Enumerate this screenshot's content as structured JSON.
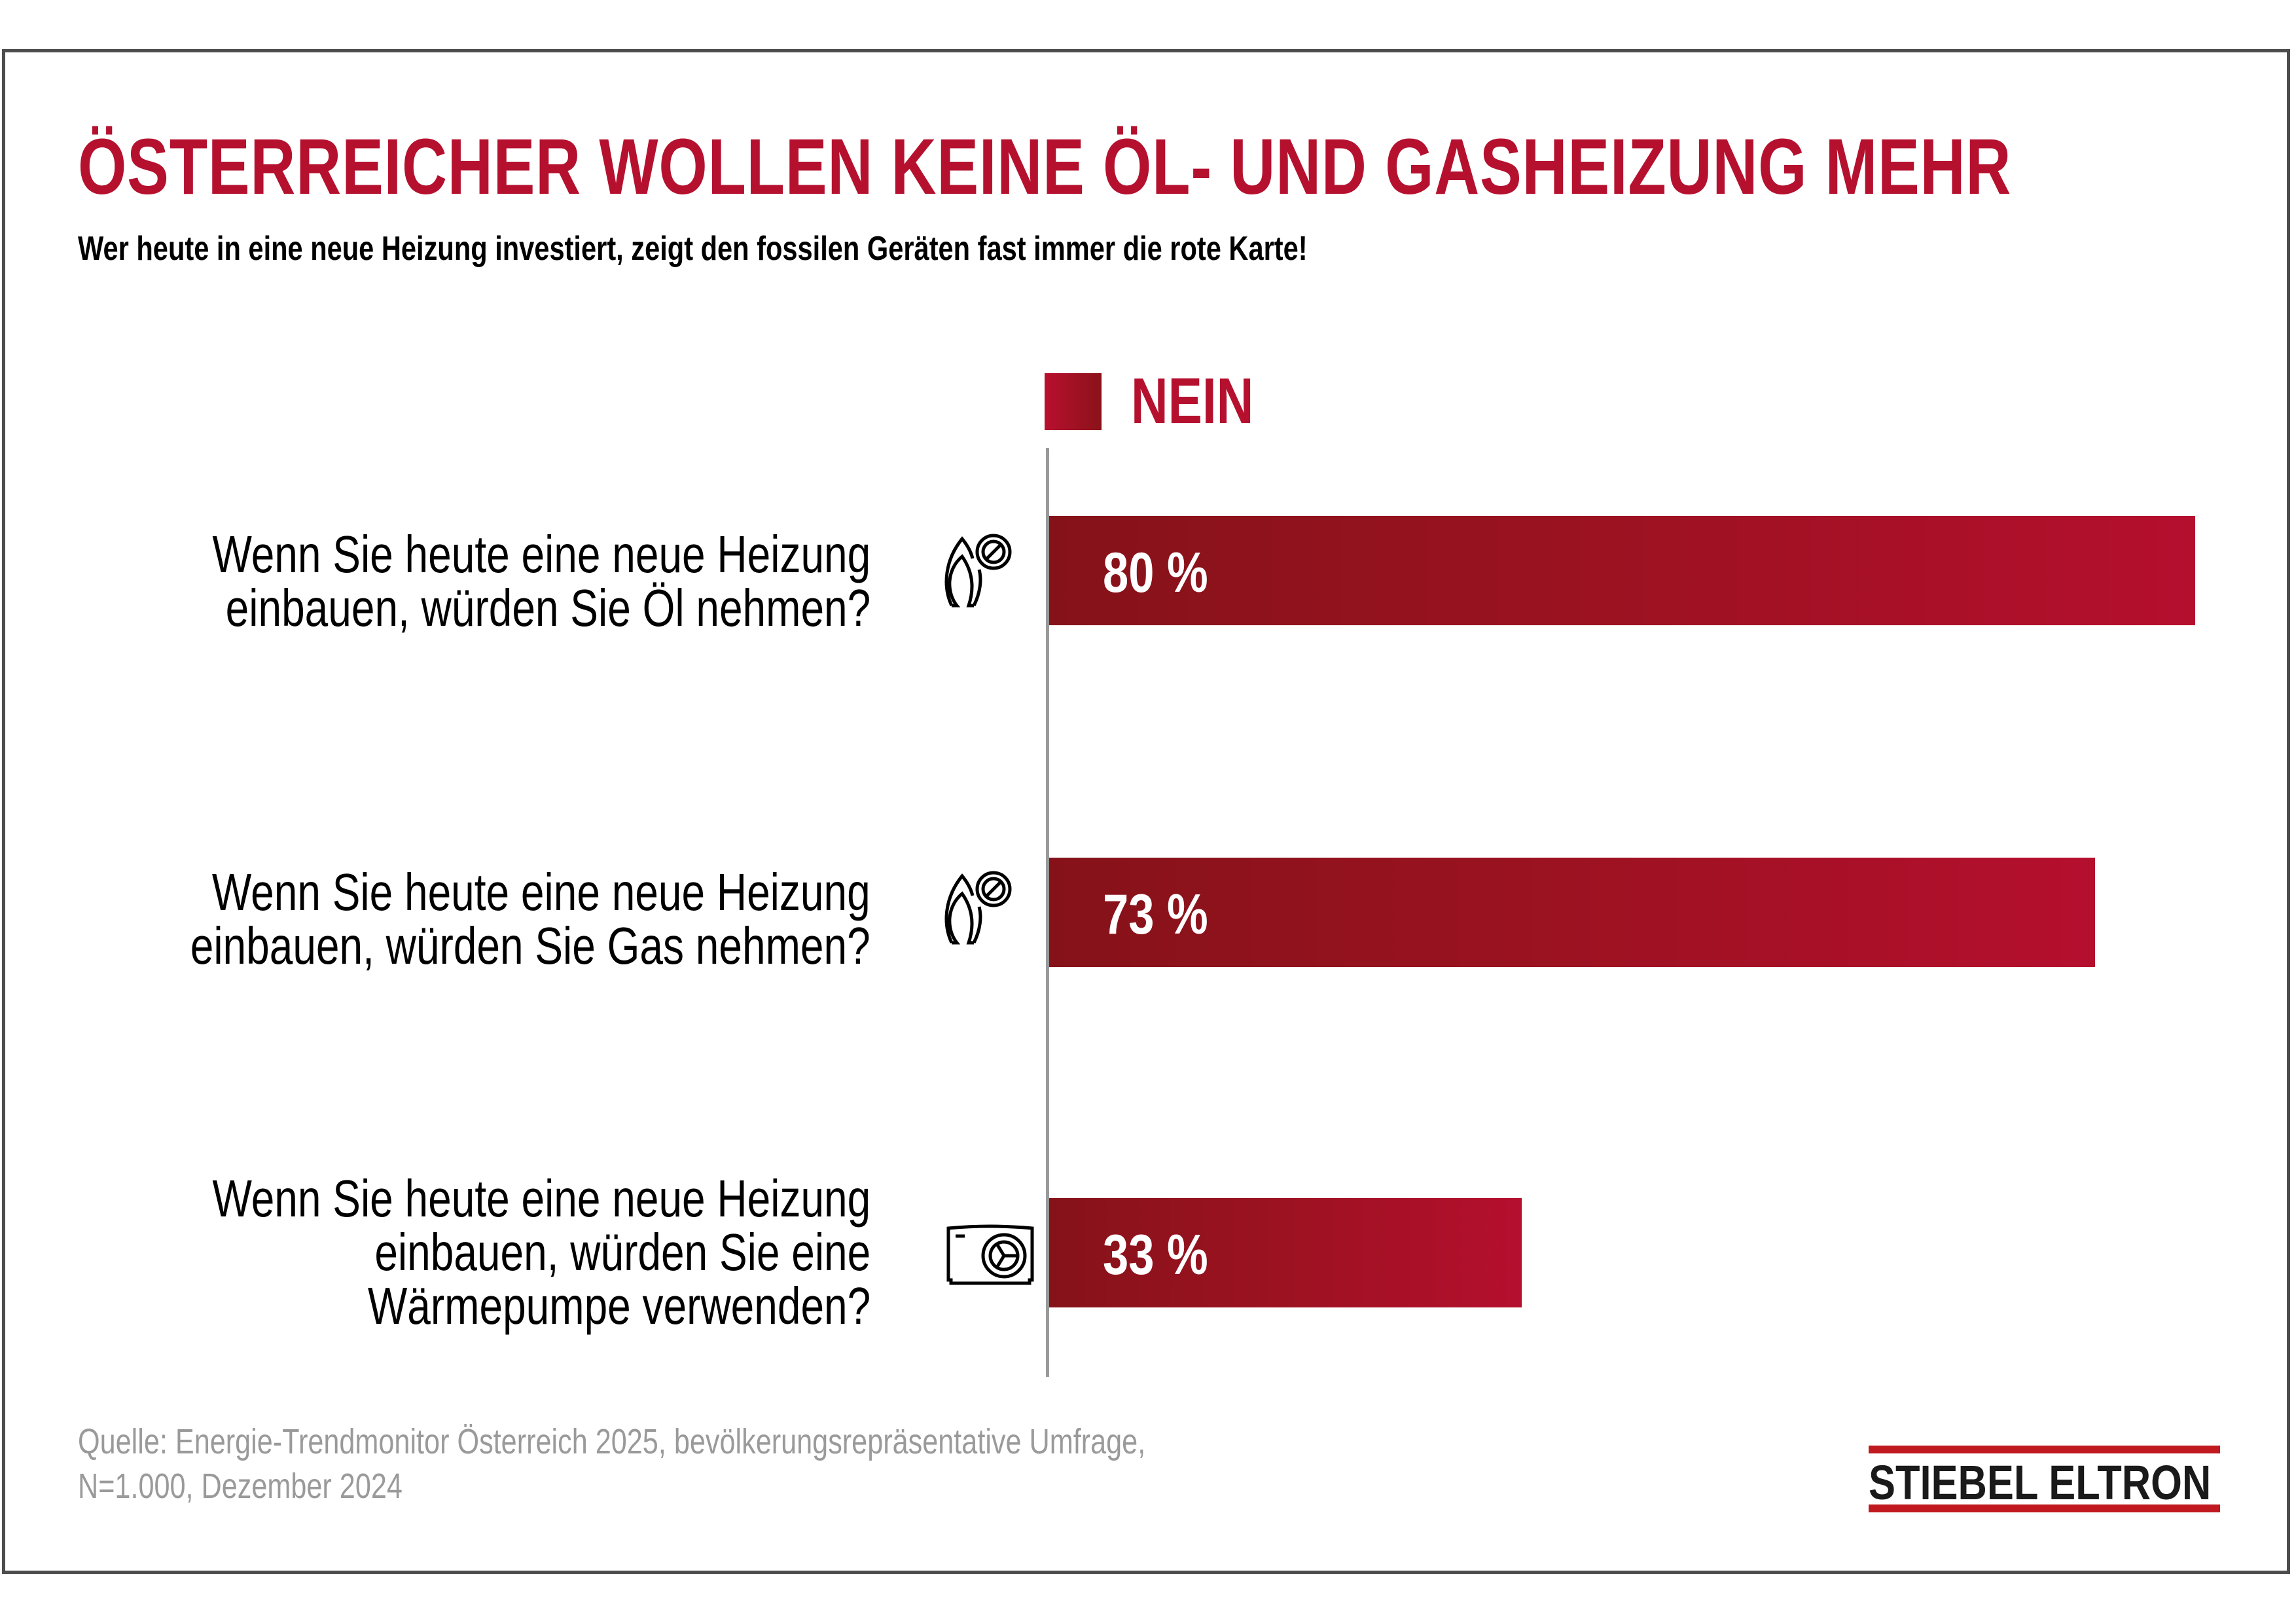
{
  "header": {
    "title": "ÖSTERREICHER WOLLEN KEINE ÖL- UND GASHEIZUNG MEHR",
    "subtitle": "Wer heute in eine neue Heizung investiert, zeigt den fossilen Geräten fast immer die rote Karte!"
  },
  "colors": {
    "accent": "#b5112f",
    "bar_dark": "#861219",
    "bar_light": "#b50f2e",
    "axis": "#999999",
    "source_text": "#9a9a9a",
    "logo_red": "#c01920"
  },
  "chart_data": {
    "type": "bar",
    "orientation": "horizontal",
    "title": "ÖSTERREICHER WOLLEN KEINE ÖL- UND GASHEIZUNG MEHR",
    "subtitle": "Wer heute in eine neue Heizung investiert, zeigt den fossilen Geräten fast immer die rote Karte!",
    "legend": {
      "entries": [
        "NEIN"
      ],
      "position": "top"
    },
    "xlim": [
      0,
      100
    ],
    "unit": "%",
    "grid": false,
    "categories": [
      "Wenn Sie heute eine neue Heizung einbauen, würden Sie Öl nehmen?",
      "Wenn Sie heute eine neue Heizung einbauen, würden Sie Gas nehmen?",
      "Wenn Sie heute eine neue Heizung einbauen, würden Sie eine Wärmepumpe verwenden?"
    ],
    "series": [
      {
        "name": "NEIN",
        "values": [
          80,
          73,
          33
        ]
      }
    ],
    "data_labels": [
      "80 %",
      "73 %",
      "33 %"
    ],
    "category_lines": [
      [
        "Wenn Sie heute eine neue Heizung",
        "einbauen, würden Sie Öl nehmen?"
      ],
      [
        "Wenn Sie heute eine neue Heizung",
        "einbauen, würden Sie Gas nehmen?"
      ],
      [
        "Wenn Sie heute eine neue Heizung",
        "einbauen, würden Sie eine",
        "Wärmepumpe verwenden?"
      ]
    ],
    "category_icons": [
      "oil-flame-prohibited-icon",
      "gas-flame-prohibited-icon",
      "heat-pump-icon"
    ]
  },
  "footer": {
    "source_lines": [
      "Quelle: Energie-Trendmonitor Österreich 2025, bevölkerungsrepräsentative Umfrage,",
      "N=1.000, Dezember 2024"
    ],
    "logo_text": "STIEBEL ELTRON"
  }
}
